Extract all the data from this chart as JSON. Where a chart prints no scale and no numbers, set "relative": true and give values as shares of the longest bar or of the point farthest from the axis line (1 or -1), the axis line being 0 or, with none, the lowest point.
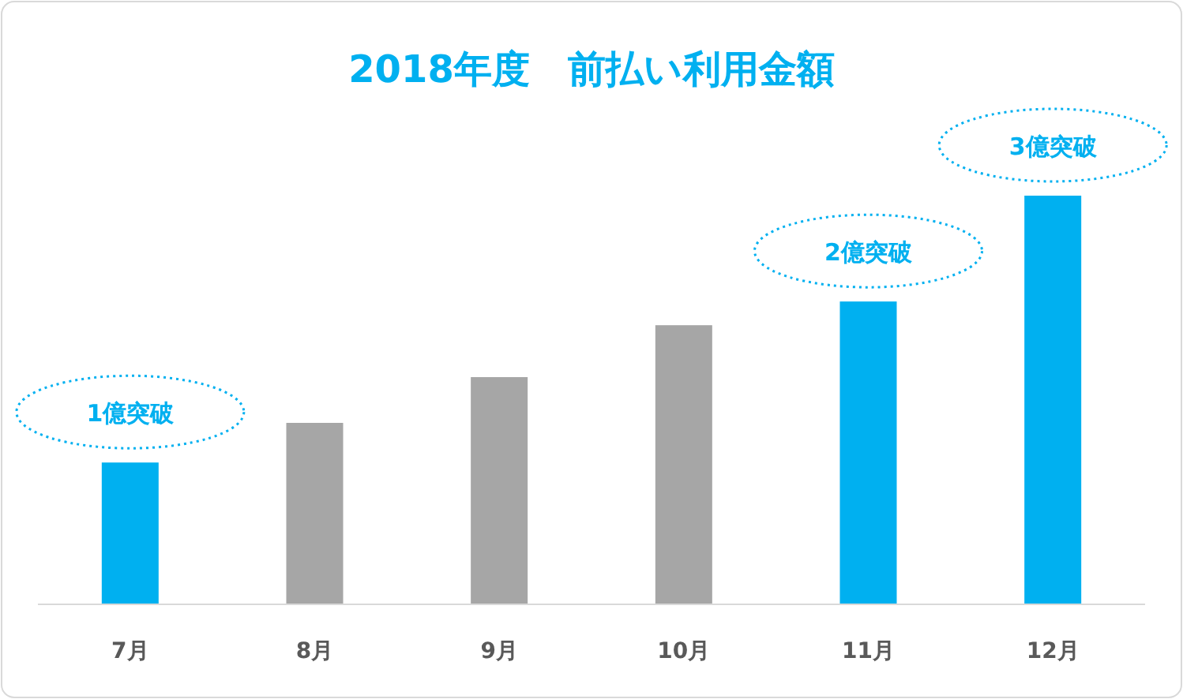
{
  "chart_data": {
    "type": "bar",
    "title": "2018年度　前払い利用金額",
    "relative": true,
    "categories": [
      "7月",
      "8月",
      "9月",
      "10月",
      "11月",
      "12月"
    ],
    "series": [
      {
        "values": [
          0.347,
          0.444,
          0.556,
          0.683,
          0.741,
          1.0
        ],
        "colors": [
          "#00b0f0",
          "#a6a6a6",
          "#a6a6a6",
          "#a6a6a6",
          "#00b0f0",
          "#00b0f0"
        ]
      }
    ],
    "annotations": [
      {
        "text": "1億突破",
        "x": "7月",
        "y": 0.347
      },
      {
        "text": "2億突破",
        "x": "11月",
        "y": 0.741
      },
      {
        "text": "3億突破",
        "x": "12月",
        "y": 1.0
      }
    ]
  }
}
